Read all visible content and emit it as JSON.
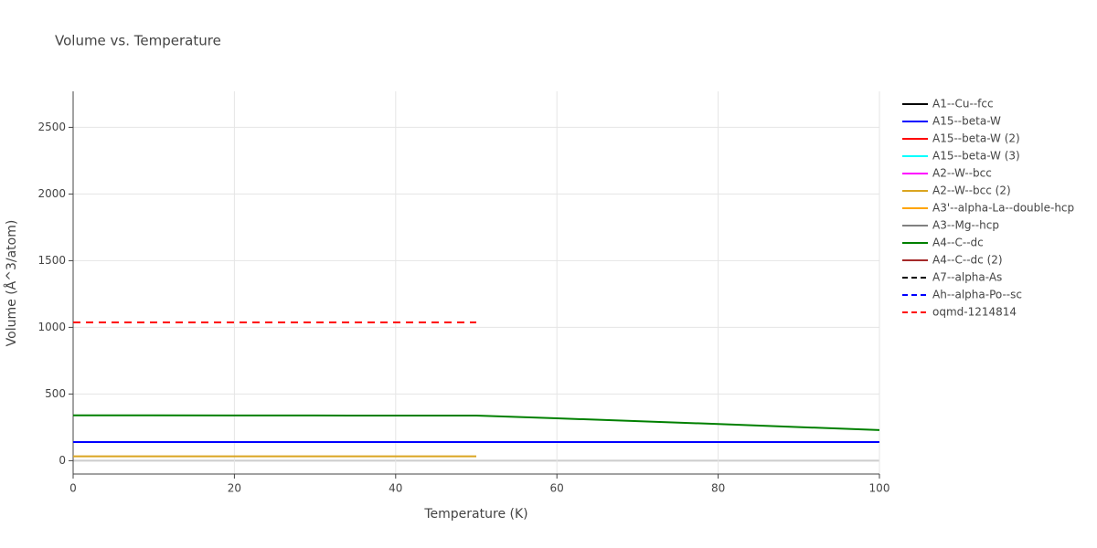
{
  "chart_data": {
    "type": "line",
    "title": "Volume vs. Temperature",
    "x_label": "Temperature (K)",
    "y_label": "Volume (Å^3/atom)",
    "x": [
      0,
      10,
      20,
      30,
      40,
      50,
      60,
      70,
      80,
      90,
      100
    ],
    "xlim": [
      0,
      100
    ],
    "xticks": [
      0,
      20,
      40,
      60,
      80,
      100
    ],
    "ylim": [
      -100,
      2770
    ],
    "yticks": [
      0,
      500,
      1000,
      1500,
      2000,
      2500
    ],
    "grid": true,
    "legend": "right",
    "series": [
      {
        "name": "A1--Cu--fcc",
        "color": "#000000",
        "dash": false,
        "values": [
          null,
          null,
          null,
          null,
          null,
          null,
          null,
          null,
          null,
          null,
          null
        ]
      },
      {
        "name": "A15--beta-W",
        "color": "#0000ff",
        "dash": false,
        "values": [
          140,
          140,
          140,
          140,
          140,
          140,
          140,
          140,
          140,
          140,
          140
        ]
      },
      {
        "name": "A15--beta-W (2)",
        "color": "#ff0000",
        "dash": false,
        "values": [
          null,
          null,
          null,
          null,
          null,
          null,
          null,
          null,
          null,
          null,
          null
        ]
      },
      {
        "name": "A15--beta-W (3)",
        "color": "#00ffff",
        "dash": false,
        "values": [
          null,
          null,
          null,
          null,
          null,
          null,
          null,
          null,
          null,
          null,
          null
        ]
      },
      {
        "name": "A2--W--bcc",
        "color": "#ff00ff",
        "dash": false,
        "values": [
          null,
          null,
          null,
          null,
          null,
          null,
          null,
          null,
          null,
          null,
          null
        ]
      },
      {
        "name": "A2--W--bcc (2)",
        "color": "#daa520",
        "dash": false,
        "values": [
          33,
          33,
          33,
          33,
          33,
          33,
          null,
          null,
          null,
          null,
          null
        ]
      },
      {
        "name": "A3'--alpha-La--double-hcp",
        "color": "#ffa500",
        "dash": false,
        "values": [
          null,
          null,
          null,
          null,
          null,
          null,
          null,
          null,
          null,
          null,
          null
        ]
      },
      {
        "name": "A3--Mg--hcp",
        "color": "#808080",
        "dash": false,
        "values": [
          null,
          null,
          null,
          null,
          null,
          null,
          null,
          null,
          null,
          null,
          null
        ]
      },
      {
        "name": "A4--C--dc",
        "color": "#008000",
        "dash": false,
        "values": [
          340,
          340,
          339,
          339,
          338,
          338,
          318,
          296,
          275,
          252,
          230
        ]
      },
      {
        "name": "A4--C--dc (2)",
        "color": "#a52a2a",
        "dash": false,
        "values": [
          null,
          null,
          null,
          null,
          null,
          null,
          null,
          null,
          null,
          null,
          null
        ]
      },
      {
        "name": "A7--alpha-As",
        "color": "#000000",
        "dash": true,
        "values": [
          null,
          null,
          null,
          null,
          null,
          null,
          null,
          null,
          null,
          null,
          null
        ]
      },
      {
        "name": "Ah--alpha-Po--sc",
        "color": "#0000ff",
        "dash": true,
        "values": [
          null,
          null,
          null,
          null,
          null,
          null,
          null,
          null,
          null,
          null,
          null
        ]
      },
      {
        "name": "oqmd-1214814",
        "color": "#ff0000",
        "dash": true,
        "values": [
          1037,
          1037,
          1037,
          1037,
          1037,
          1037,
          null,
          null,
          null,
          null,
          null
        ]
      }
    ]
  }
}
